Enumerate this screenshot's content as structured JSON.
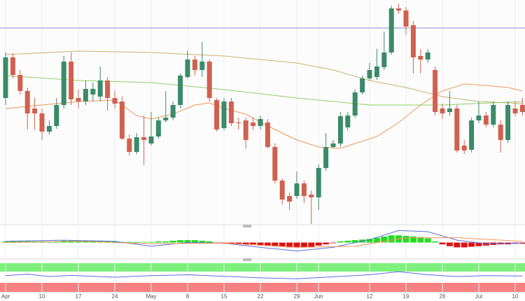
{
  "chart_data": [
    {
      "type": "candlestick",
      "categories": [
        "Apr",
        null,
        null,
        null,
        null,
        "10",
        null,
        null,
        null,
        null,
        "17",
        null,
        null,
        null,
        null,
        "24",
        null,
        null,
        null,
        null,
        "May",
        null,
        null,
        null,
        null,
        "8",
        null,
        null,
        null,
        null,
        "15",
        null,
        null,
        null,
        null,
        "22",
        null,
        null,
        null,
        null,
        "29",
        null,
        null,
        "Jun",
        null,
        null,
        null,
        null,
        null,
        null,
        "12",
        null,
        null,
        null,
        null,
        "19",
        null,
        null,
        null,
        null,
        "26",
        null,
        null,
        null,
        null,
        "Jul",
        null,
        null,
        null,
        null,
        "10",
        null
      ],
      "open": [
        190,
        248,
        223,
        200,
        175,
        168,
        142,
        150,
        180,
        242,
        190,
        185,
        195,
        192,
        215,
        190,
        185,
        132,
        113,
        134,
        125,
        135,
        158,
        162,
        180,
        220,
        245,
        230,
        242,
        187,
        147,
        185,
        155,
        158,
        155,
        150,
        155,
        120,
        72,
        50,
        50,
        68,
        52,
        48,
        90,
        120,
        125,
        148,
        165,
        198,
        218,
        220,
        234,
        255,
        318,
        315,
        294,
        250,
        245,
        230,
        175,
        170,
        175,
        122,
        116,
        158,
        165,
        152,
        152,
        130,
        175,
        180
      ],
      "high": [
        255,
        254,
        230,
        205,
        190,
        175,
        158,
        190,
        250,
        255,
        202,
        215,
        212,
        235,
        220,
        200,
        192,
        138,
        140,
        165,
        170,
        162,
        200,
        185,
        225,
        258,
        250,
        270,
        245,
        190,
        190,
        190,
        162,
        162,
        162,
        165,
        160,
        125,
        75,
        55,
        85,
        72,
        58,
        95,
        140,
        130,
        170,
        170,
        202,
        222,
        240,
        260,
        285,
        322,
        325,
        320,
        300,
        260,
        260,
        235,
        182,
        200,
        180,
        130,
        162,
        185,
        170,
        185,
        158,
        185,
        185,
        190
      ],
      "low": [
        180,
        218,
        195,
        145,
        145,
        130,
        138,
        146,
        175,
        180,
        175,
        180,
        185,
        185,
        172,
        175,
        130,
        108,
        110,
        94,
        122,
        132,
        155,
        158,
        175,
        218,
        222,
        220,
        185,
        142,
        144,
        150,
        145,
        118,
        144,
        145,
        118,
        68,
        38,
        30,
        46,
        40,
        10,
        30,
        86,
        118,
        120,
        144,
        162,
        195,
        215,
        216,
        230,
        252,
        310,
        280,
        225,
        225,
        240,
        165,
        160,
        165,
        112,
        110,
        112,
        154,
        148,
        148,
        112,
        126,
        164,
        165
      ],
      "close": [
        248,
        223,
        200,
        168,
        168,
        142,
        150,
        180,
        242,
        188,
        185,
        203,
        203,
        215,
        190,
        182,
        132,
        113,
        134,
        130,
        135,
        158,
        162,
        180,
        222,
        245,
        230,
        242,
        190,
        145,
        185,
        154,
        154,
        130,
        150,
        160,
        120,
        72,
        45,
        42,
        68,
        50,
        48,
        90,
        120,
        125,
        164,
        165,
        198,
        218,
        230,
        235,
        255,
        318,
        315,
        292,
        248,
        245,
        255,
        170,
        168,
        175,
        115,
        115,
        158,
        165,
        152,
        180,
        130,
        180,
        168,
        170
      ],
      "up_color": "#3b8a68",
      "down_color": "#d0604f",
      "ylim": [
        10,
        330
      ],
      "hline": {
        "value": 290,
        "color": "#8c8cc8"
      },
      "series": [
        {
          "color": "#f0955a",
          "x": [
            0,
            5,
            10,
            15,
            18,
            20,
            23,
            26,
            28,
            30,
            33,
            36,
            40,
            43,
            46,
            48,
            51,
            54,
            57,
            60,
            63,
            66,
            69,
            71
          ],
          "values": [
            175,
            180,
            185,
            187,
            165,
            160,
            167,
            180,
            183,
            175,
            167,
            150,
            130,
            120,
            118,
            125,
            135,
            155,
            180,
            200,
            210,
            208,
            205,
            200
          ]
        },
        {
          "color": "#c9b06a",
          "x": [
            0,
            10,
            20,
            30,
            40,
            45,
            50,
            55,
            60,
            65,
            71
          ],
          "values": [
            252,
            257,
            255,
            250,
            240,
            230,
            215,
            205,
            192,
            185,
            182
          ]
        },
        {
          "color": "#8fcf6a",
          "x": [
            0,
            10,
            20,
            30,
            40,
            50,
            60,
            71
          ],
          "values": [
            222,
            215,
            212,
            202,
            190,
            180,
            180,
            185
          ]
        }
      ]
    },
    {
      "type": "macd",
      "values": [
        2,
        3,
        3,
        3,
        2,
        2,
        1,
        2,
        3,
        3,
        3,
        3,
        3,
        3,
        2,
        2,
        1,
        1,
        1,
        1,
        1,
        2,
        2,
        3,
        4,
        4,
        4,
        3,
        2,
        -1,
        -2,
        -2,
        -2,
        -3,
        -3,
        -4,
        -5,
        -6,
        -7,
        -8,
        -8,
        -8,
        -7,
        -5,
        -3,
        -1,
        2,
        3,
        4,
        5,
        6,
        8,
        10,
        12,
        12,
        11,
        10,
        9,
        7,
        2,
        -3,
        -6,
        -8,
        -8,
        -7,
        -6,
        -5,
        -4,
        -3,
        -3,
        -2,
        -2
      ],
      "up_color": "#22dd22",
      "down_color": "#dd1111",
      "ylim": [
        -25,
        25
      ],
      "series": [
        {
          "color": "#5a6ee0",
          "x": [
            0,
            8,
            15,
            20,
            25,
            30,
            35,
            40,
            45,
            50,
            54,
            58,
            62,
            66,
            71
          ],
          "values": [
            2,
            4,
            2,
            -6,
            0,
            -1,
            -8,
            -14,
            -8,
            5,
            20,
            18,
            4,
            -2,
            -1
          ]
        },
        {
          "color": "#f0955a",
          "x": [
            0,
            10,
            20,
            30,
            40,
            48,
            55,
            62,
            71
          ],
          "values": [
            0,
            2,
            -2,
            -1,
            -8,
            -6,
            8,
            8,
            2
          ]
        }
      ]
    },
    {
      "type": "oscillator",
      "ylim": [
        0,
        100
      ],
      "series": [
        {
          "color": "#5a6ee0",
          "x": [
            0,
            3,
            6,
            9,
            15,
            20,
            25,
            30,
            35,
            40,
            44,
            50,
            54,
            58,
            62,
            66,
            71
          ],
          "values": [
            55,
            60,
            52,
            56,
            50,
            55,
            58,
            53,
            48,
            45,
            50,
            58,
            68,
            58,
            52,
            55,
            54
          ]
        }
      ]
    }
  ]
}
